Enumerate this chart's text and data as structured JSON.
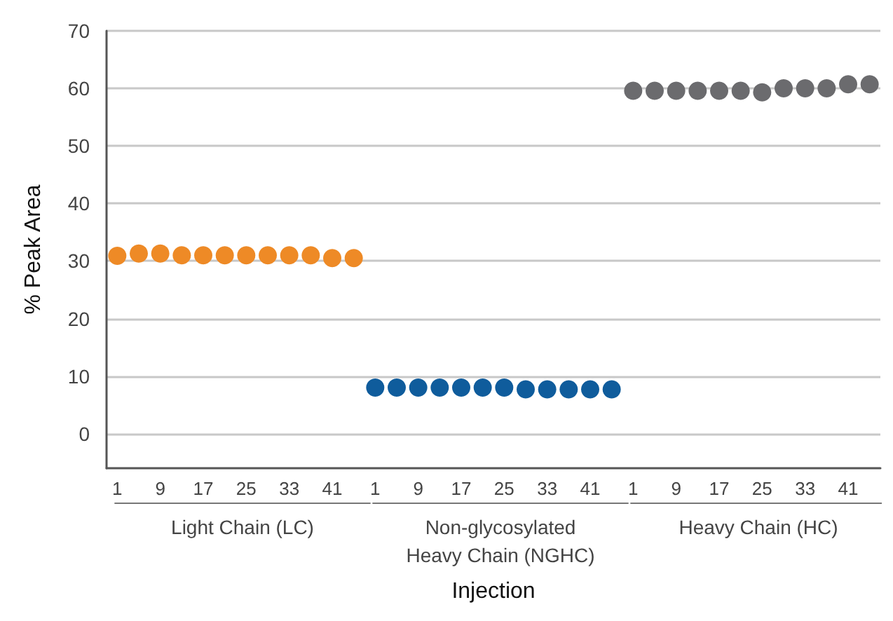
{
  "chart_data": {
    "type": "scatter",
    "xlabel": "Injection",
    "ylabel": "% Peak Area",
    "categories": [
      "1",
      null,
      "9",
      null,
      "17",
      null,
      "25",
      null,
      "33",
      null,
      "41",
      null,
      "1",
      null,
      "9",
      null,
      "17",
      null,
      "25",
      null,
      "33",
      null,
      "41",
      null,
      "1",
      null,
      "9",
      null,
      "17",
      null,
      "25",
      null,
      "33",
      null,
      "41",
      null
    ],
    "series": [
      {
        "color": "#ee8a26",
        "values": [
          30.9,
          31.3,
          31.3,
          31.0,
          31.0,
          31.0,
          31.0,
          31.0,
          31.0,
          31.0,
          30.5,
          30.5,
          null,
          null,
          null,
          null,
          null,
          null,
          null,
          null,
          null,
          null,
          null,
          null,
          null,
          null,
          null,
          null,
          null,
          null,
          null,
          null,
          null,
          null,
          null,
          null
        ]
      },
      {
        "color": "#0f5c9c",
        "values": [
          null,
          null,
          null,
          null,
          null,
          null,
          null,
          null,
          null,
          null,
          null,
          null,
          8.0,
          8.0,
          8.0,
          8.0,
          8.0,
          8.0,
          8.0,
          7.7,
          7.7,
          7.7,
          7.7,
          7.7,
          null,
          null,
          null,
          null,
          null,
          null,
          null,
          null,
          null,
          null,
          null,
          null
        ]
      },
      {
        "color": "#6b6b6e",
        "values": [
          null,
          null,
          null,
          null,
          null,
          null,
          null,
          null,
          null,
          null,
          null,
          null,
          null,
          null,
          null,
          null,
          null,
          null,
          null,
          null,
          null,
          null,
          null,
          null,
          59.6,
          59.6,
          59.6,
          59.6,
          59.6,
          59.6,
          59.3,
          60.0,
          60.0,
          60.0,
          60.7,
          60.7
        ]
      }
    ],
    "annotations": [
      "Light Chain (LC)",
      "Non-glycosylated\nHeavy Chain (NGHC)",
      "Heavy Chain (HC)"
    ],
    "ylim": [
      -6,
      70
    ],
    "yticks": [
      0,
      10,
      20,
      30,
      40,
      50,
      60,
      70
    ],
    "grid": "y",
    "marker": "circle"
  }
}
